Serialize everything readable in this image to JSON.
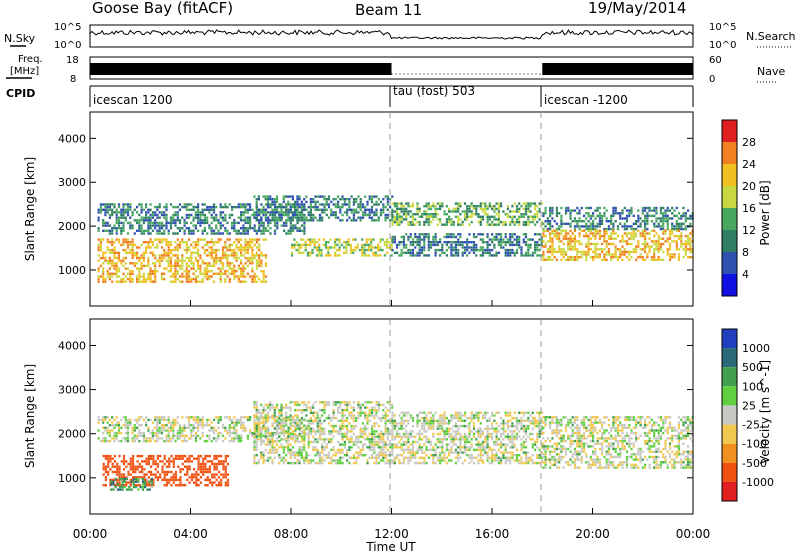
{
  "header": {
    "station": "Goose Bay (fitACF)",
    "beam": "Beam 11",
    "date": "19/May/2014"
  },
  "noise_panel": {
    "left_label": "N.Sky",
    "right_label": "N.Search",
    "left_ticks": [
      "10^5",
      "10^0"
    ],
    "right_ticks": [
      "10^5",
      "10^0"
    ]
  },
  "freq_panel": {
    "left_label_line1": "Freq.",
    "left_label_line2": "[MHz]",
    "left_ticks": [
      "18",
      "8"
    ],
    "right_label": "Nave",
    "right_ticks": [
      "60",
      "0"
    ]
  },
  "cpid_panel": {
    "label": "CPID",
    "segments": [
      {
        "start_hour": 0,
        "end_hour": 12,
        "name": "icescan 1200"
      },
      {
        "start_hour": 12,
        "end_hour": 18,
        "name": "tau (fost) 503"
      },
      {
        "start_hour": 18,
        "end_hour": 24,
        "name": "icescan -1200"
      }
    ]
  },
  "power_panel": {
    "ylabel": "Slant Range [km]",
    "colorbar_label": "Power [dB]",
    "colorbar_ticks": [
      "4",
      "8",
      "12",
      "16",
      "20",
      "24",
      "28"
    ],
    "colors": [
      "#1010e0",
      "#3050b0",
      "#2f7f62",
      "#48a860",
      "#c8d840",
      "#f0c020",
      "#f08020",
      "#e02020"
    ]
  },
  "velocity_panel": {
    "ylabel": "Slant Range [km]",
    "colorbar_label": "Velocity [m s^-1]",
    "colorbar_ticks": [
      "1000",
      "500",
      "100",
      "25",
      "-25",
      "-100",
      "-500",
      "-1000"
    ],
    "colors": [
      "#2040c0",
      "#2a6a78",
      "#40a050",
      "#60d040",
      "#c8c8c4",
      "#f0c850",
      "#f09020",
      "#f05010",
      "#e02020"
    ]
  },
  "xaxis": {
    "label": "Time UT",
    "ticks": [
      "00:00",
      "04:00",
      "08:00",
      "12:00",
      "16:00",
      "20:00",
      "00:00"
    ]
  },
  "chart_data": {
    "type": "heatmap",
    "title": "Goose Bay (fitACF)",
    "beam": "Beam 11",
    "date": "19/May/2014",
    "xlabel": "Time UT",
    "xlim": [
      "00:00",
      "24:00"
    ],
    "x_ticks": [
      "00:00",
      "04:00",
      "08:00",
      "12:00",
      "16:00",
      "20:00",
      "00:00"
    ],
    "ylabel": "Slant Range [km]",
    "ylim": [
      180,
      4600
    ],
    "y_ticks": [
      1000,
      2000,
      3000,
      4000
    ],
    "mode_change_hours": [
      12,
      18
    ],
    "panels": [
      {
        "name": "Power",
        "unit": "dB",
        "colorbar_ticks": [
          4,
          8,
          12,
          16,
          20,
          24,
          28
        ],
        "echo_bands": [
          {
            "t_start": 0.3,
            "t_end": 8.5,
            "range_low": 1800,
            "range_high": 2500,
            "level": 8
          },
          {
            "t_start": 0.3,
            "t_end": 7.0,
            "range_low": 700,
            "range_high": 1700,
            "level": 20
          },
          {
            "t_start": 6.5,
            "t_end": 12.0,
            "range_low": 2100,
            "range_high": 2700,
            "level": 8
          },
          {
            "t_start": 8.0,
            "t_end": 12.0,
            "range_low": 1300,
            "range_high": 1700,
            "level": 16
          },
          {
            "t_start": 12.0,
            "t_end": 18.0,
            "range_low": 2000,
            "range_high": 2500,
            "level": 12
          },
          {
            "t_start": 12.0,
            "t_end": 18.0,
            "range_low": 1300,
            "range_high": 1800,
            "level": 8
          },
          {
            "t_start": 18.0,
            "t_end": 24.0,
            "range_low": 1900,
            "range_high": 2400,
            "level": 8
          },
          {
            "t_start": 18.0,
            "t_end": 24.0,
            "range_low": 1200,
            "range_high": 1900,
            "level": 20
          }
        ]
      },
      {
        "name": "Velocity",
        "unit": "m s^-1",
        "colorbar_ticks": [
          1000,
          500,
          100,
          25,
          -25,
          -100,
          -500,
          -1000
        ],
        "echo_bands": [
          {
            "t_start": 0.3,
            "t_end": 8.5,
            "range_low": 1800,
            "range_high": 2400,
            "velocity": 0
          },
          {
            "t_start": 0.5,
            "t_end": 5.5,
            "range_low": 800,
            "range_high": 1500,
            "velocity": -400
          },
          {
            "t_start": 0.8,
            "t_end": 2.5,
            "range_low": 700,
            "range_high": 1000,
            "velocity": 80
          },
          {
            "t_start": 6.5,
            "t_end": 12.0,
            "range_low": 1300,
            "range_high": 2700,
            "velocity": 0
          },
          {
            "t_start": 12.0,
            "t_end": 18.0,
            "range_low": 1300,
            "range_high": 2500,
            "velocity": 0
          },
          {
            "t_start": 18.0,
            "t_end": 24.0,
            "range_low": 1200,
            "range_high": 2400,
            "velocity": 0
          }
        ]
      }
    ]
  }
}
